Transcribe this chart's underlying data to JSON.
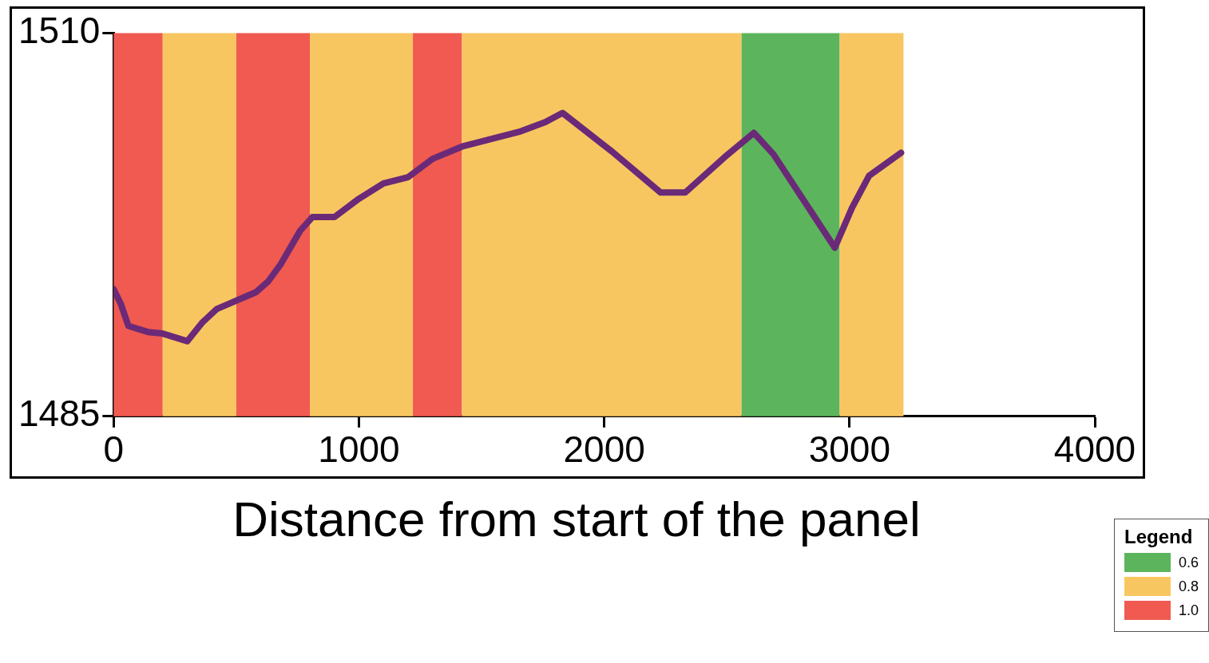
{
  "chart_data": {
    "type": "line",
    "xlabel": "Distance from start of the panel",
    "legend_title": "Legend",
    "legend": "bottom right",
    "grid": false,
    "marker": "none",
    "line_style": "solid",
    "xlim": [
      0,
      4000
    ],
    "xticks": [
      0,
      1000,
      2000,
      3000,
      4000
    ],
    "ylim": [
      1485,
      1510
    ],
    "yticks": [
      1485,
      1510
    ],
    "series": [
      {
        "color": "#6a2a78",
        "x": [
          0,
          30,
          60,
          140,
          200,
          300,
          360,
          420,
          580,
          630,
          680,
          760,
          810,
          900,
          1000,
          1100,
          1200,
          1300,
          1420,
          1540,
          1660,
          1760,
          1830,
          2030,
          2230,
          2330,
          2490,
          2610,
          2690,
          2940,
          3010,
          3080,
          3210
        ],
        "values": [
          1493.3,
          1492.3,
          1490.9,
          1490.5,
          1490.4,
          1489.9,
          1491.1,
          1492.0,
          1493.1,
          1493.8,
          1494.9,
          1497.1,
          1498.0,
          1498.0,
          1499.2,
          1500.2,
          1500.6,
          1501.8,
          1502.6,
          1503.1,
          1503.6,
          1504.2,
          1504.8,
          1502.3,
          1499.6,
          1499.6,
          1501.9,
          1503.5,
          1502.1,
          1496.0,
          1498.6,
          1500.7,
          1502.2
        ]
      }
    ],
    "bands": [
      {
        "axis": "x",
        "from": 0,
        "to": 200,
        "label": "1.0",
        "color": "#f05a50"
      },
      {
        "axis": "x",
        "from": 200,
        "to": 500,
        "label": "0.8",
        "color": "#f8c660"
      },
      {
        "axis": "x",
        "from": 500,
        "to": 800,
        "color": "#f05a50"
      },
      {
        "axis": "x",
        "from": 800,
        "to": 1220,
        "color": "#f8c660"
      },
      {
        "axis": "x",
        "from": 1220,
        "to": 1420,
        "color": "#f05a50"
      },
      {
        "axis": "x",
        "from": 1420,
        "to": 2560,
        "color": "#f8c660"
      },
      {
        "axis": "x",
        "from": 2560,
        "to": 2960,
        "label": "0.6",
        "color": "#5cb55c"
      },
      {
        "axis": "x",
        "from": 2960,
        "to": 3220,
        "color": "#f8c660"
      }
    ]
  }
}
